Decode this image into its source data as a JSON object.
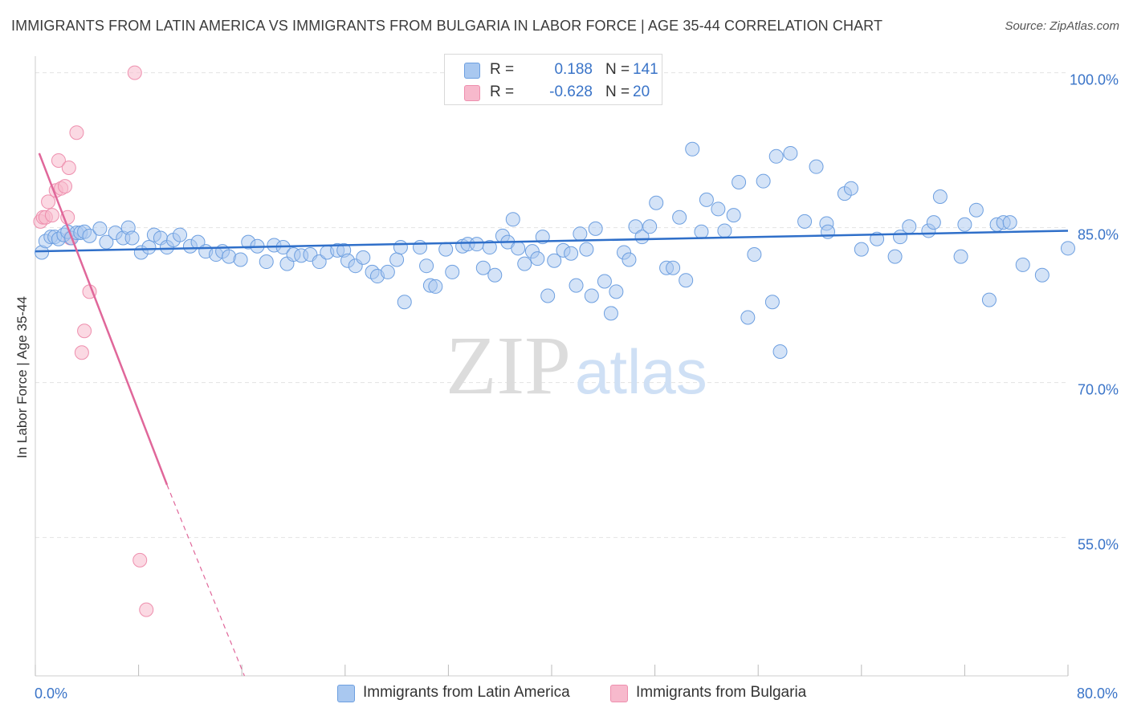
{
  "header": {
    "title": "IMMIGRANTS FROM LATIN AMERICA VS IMMIGRANTS FROM BULGARIA IN LABOR FORCE | AGE 35-44 CORRELATION CHART",
    "source": "Source: ZipAtlas.com"
  },
  "legend": {
    "blue": {
      "r_label": "R =",
      "r_value": "0.188",
      "n_label": "N =",
      "n_value": "141"
    },
    "pink": {
      "r_label": "R =",
      "r_value": "-0.628",
      "n_label": "N =",
      "n_value": "20"
    }
  },
  "bottom_legend": {
    "blue_label": "Immigrants from Latin America",
    "pink_label": "Immigrants from Bulgaria"
  },
  "colors": {
    "blue_fill": "#a9c8f0",
    "blue_stroke": "#6d9fe0",
    "blue_line": "#2f6fc9",
    "pink_fill": "#f7b9cc",
    "pink_stroke": "#ee8fae",
    "pink_line": "#e0679a",
    "tick_text": "#3a74c8",
    "grid": "#e3e3e3"
  },
  "watermark": {
    "part1": "ZIP",
    "part2": "atlas"
  },
  "chart_data": {
    "type": "scatter",
    "title": "IMMIGRANTS FROM LATIN AMERICA VS IMMIGRANTS FROM BULGARIA IN LABOR FORCE | AGE 35-44 CORRELATION CHART",
    "xlabel": "",
    "ylabel": "In Labor Force | Age 35-44",
    "xlim": [
      0,
      80
    ],
    "ylim": [
      41.6,
      101.6
    ],
    "x_tick_labels": {
      "left": "0.0%",
      "right": "80.0%"
    },
    "y_ticks": [
      {
        "value": 100,
        "label": "100.0%"
      },
      {
        "value": 85,
        "label": "85.0%"
      },
      {
        "value": 70,
        "label": "70.0%"
      },
      {
        "value": 55,
        "label": "55.0%"
      }
    ],
    "grid": true,
    "legend_position": "top-center",
    "series": [
      {
        "name": "Immigrants from Latin America",
        "color": "#a9c8f0",
        "trendline": {
          "x": [
            0,
            80
          ],
          "y": [
            82.7,
            84.7
          ]
        },
        "points": [
          [
            0.5,
            82.6
          ],
          [
            0.8,
            83.7
          ],
          [
            1.2,
            84.1
          ],
          [
            1.5,
            84.1
          ],
          [
            1.8,
            83.9
          ],
          [
            2.2,
            84.3
          ],
          [
            2.5,
            84.6
          ],
          [
            2.8,
            84.0
          ],
          [
            3.2,
            84.5
          ],
          [
            3.5,
            84.5
          ],
          [
            3.8,
            84.6
          ],
          [
            4.2,
            84.2
          ],
          [
            5.0,
            84.9
          ],
          [
            5.5,
            83.6
          ],
          [
            6.2,
            84.5
          ],
          [
            6.8,
            84.0
          ],
          [
            7.2,
            85.0
          ],
          [
            7.5,
            84.0
          ],
          [
            8.2,
            82.6
          ],
          [
            8.8,
            83.1
          ],
          [
            9.2,
            84.3
          ],
          [
            9.7,
            84.0
          ],
          [
            10.2,
            83.1
          ],
          [
            10.7,
            83.8
          ],
          [
            11.2,
            84.3
          ],
          [
            12.0,
            83.2
          ],
          [
            12.6,
            83.6
          ],
          [
            13.2,
            82.7
          ],
          [
            14.0,
            82.4
          ],
          [
            14.5,
            82.7
          ],
          [
            15.0,
            82.2
          ],
          [
            15.9,
            81.9
          ],
          [
            16.5,
            83.6
          ],
          [
            17.2,
            83.2
          ],
          [
            17.9,
            81.7
          ],
          [
            18.5,
            83.3
          ],
          [
            19.2,
            83.1
          ],
          [
            19.5,
            81.5
          ],
          [
            20.0,
            82.4
          ],
          [
            20.6,
            82.3
          ],
          [
            21.3,
            82.4
          ],
          [
            22.0,
            81.7
          ],
          [
            22.6,
            82.6
          ],
          [
            23.4,
            82.8
          ],
          [
            23.9,
            82.8
          ],
          [
            24.2,
            81.8
          ],
          [
            24.8,
            81.3
          ],
          [
            25.4,
            82.1
          ],
          [
            26.1,
            80.7
          ],
          [
            26.5,
            80.3
          ],
          [
            27.3,
            80.7
          ],
          [
            28.0,
            81.9
          ],
          [
            28.3,
            83.1
          ],
          [
            28.6,
            77.8
          ],
          [
            29.8,
            83.1
          ],
          [
            30.3,
            81.3
          ],
          [
            30.6,
            79.4
          ],
          [
            31.0,
            79.3
          ],
          [
            31.8,
            82.9
          ],
          [
            32.3,
            80.7
          ],
          [
            33.1,
            83.2
          ],
          [
            33.5,
            83.4
          ],
          [
            34.2,
            83.4
          ],
          [
            34.7,
            81.1
          ],
          [
            35.2,
            83.1
          ],
          [
            35.6,
            80.4
          ],
          [
            36.2,
            84.2
          ],
          [
            36.6,
            83.6
          ],
          [
            37.0,
            85.8
          ],
          [
            37.4,
            83.0
          ],
          [
            37.9,
            81.5
          ],
          [
            38.5,
            82.7
          ],
          [
            38.9,
            82.0
          ],
          [
            39.3,
            84.1
          ],
          [
            39.7,
            78.4
          ],
          [
            40.2,
            81.8
          ],
          [
            40.9,
            82.8
          ],
          [
            41.5,
            82.5
          ],
          [
            41.9,
            79.4
          ],
          [
            42.2,
            84.4
          ],
          [
            42.7,
            82.9
          ],
          [
            43.1,
            78.4
          ],
          [
            43.4,
            84.9
          ],
          [
            44.1,
            79.8
          ],
          [
            44.6,
            76.7
          ],
          [
            45.0,
            78.8
          ],
          [
            45.6,
            82.6
          ],
          [
            46.0,
            81.9
          ],
          [
            46.5,
            85.1
          ],
          [
            47.0,
            84.1
          ],
          [
            47.6,
            85.1
          ],
          [
            48.1,
            87.4
          ],
          [
            48.9,
            81.1
          ],
          [
            49.4,
            81.1
          ],
          [
            49.9,
            86.0
          ],
          [
            50.4,
            79.9
          ],
          [
            50.9,
            92.6
          ],
          [
            51.6,
            84.6
          ],
          [
            52.0,
            87.7
          ],
          [
            52.9,
            86.8
          ],
          [
            53.4,
            84.7
          ],
          [
            54.1,
            86.2
          ],
          [
            54.5,
            89.4
          ],
          [
            55.2,
            76.3
          ],
          [
            55.7,
            82.4
          ],
          [
            56.4,
            89.5
          ],
          [
            57.1,
            77.8
          ],
          [
            57.4,
            91.9
          ],
          [
            57.7,
            73.0
          ],
          [
            58.5,
            92.2
          ],
          [
            59.6,
            85.6
          ],
          [
            60.5,
            90.9
          ],
          [
            61.3,
            85.4
          ],
          [
            61.4,
            84.6
          ],
          [
            62.7,
            88.3
          ],
          [
            63.2,
            88.8
          ],
          [
            64.0,
            82.9
          ],
          [
            65.2,
            83.9
          ],
          [
            66.6,
            82.2
          ],
          [
            67.0,
            84.1
          ],
          [
            67.7,
            85.1
          ],
          [
            69.2,
            84.7
          ],
          [
            69.6,
            85.5
          ],
          [
            70.1,
            88.0
          ],
          [
            71.7,
            82.2
          ],
          [
            72.0,
            85.3
          ],
          [
            72.9,
            86.7
          ],
          [
            73.9,
            78.0
          ],
          [
            74.5,
            85.3
          ],
          [
            75.0,
            85.5
          ],
          [
            75.5,
            85.5
          ],
          [
            76.5,
            81.4
          ],
          [
            78.0,
            80.4
          ],
          [
            80.0,
            83.0
          ]
        ]
      },
      {
        "name": "Immigrants from Bulgaria",
        "color": "#f7b9cc",
        "trendline": {
          "x": [
            0.3,
            10.2
          ],
          "y": [
            92.2,
            60.1
          ]
        },
        "trendline_extension": {
          "x": [
            10.2,
            16.2
          ],
          "y": [
            60.1,
            41.6
          ]
        },
        "points": [
          [
            0.4,
            85.6
          ],
          [
            0.6,
            86.0
          ],
          [
            0.8,
            86.0
          ],
          [
            1.0,
            87.5
          ],
          [
            1.3,
            86.2
          ],
          [
            1.6,
            88.6
          ],
          [
            1.8,
            91.5
          ],
          [
            2.0,
            88.8
          ],
          [
            2.3,
            89.0
          ],
          [
            2.5,
            86.0
          ],
          [
            2.6,
            90.8
          ],
          [
            2.7,
            84.0
          ],
          [
            3.2,
            94.2
          ],
          [
            3.6,
            72.9
          ],
          [
            3.8,
            75.0
          ],
          [
            4.2,
            78.8
          ],
          [
            7.7,
            100.0
          ],
          [
            8.1,
            52.8
          ],
          [
            8.6,
            48.0
          ]
        ]
      }
    ]
  }
}
